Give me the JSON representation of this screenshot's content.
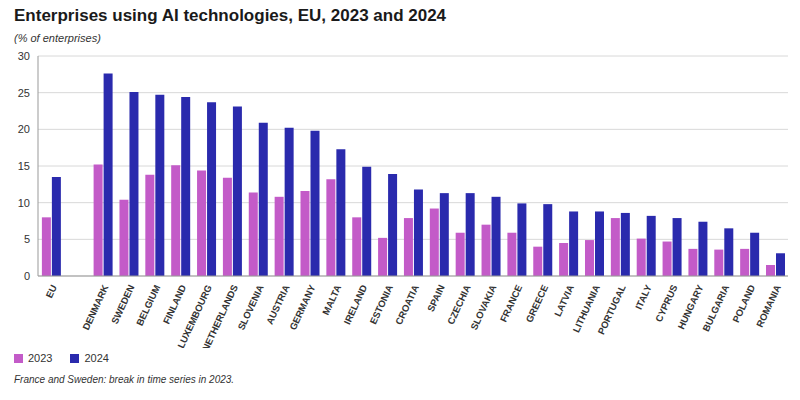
{
  "chart_data": {
    "type": "bar",
    "title": "Enterprises using AI technologies, EU, 2023 and 2024",
    "subtitle": "(% of enterprises)",
    "footnote": "France and Sweden: break in time series in 2023.",
    "categories": [
      "EU",
      null,
      "DENMARK",
      "SWEDEN",
      "BELGIUM",
      "FINLAND",
      "LUXEMBOURG",
      "NETHERLANDS",
      "SLOVENIA",
      "AUSTRIA",
      "GERMANY",
      "MALTA",
      "IRELAND",
      "ESTONIA",
      "CROATIA",
      "SPAIN",
      "CZECHIA",
      "SLOVAKIA",
      "FRANCE",
      "GREECE",
      "LATVIA",
      "LITHUANIA",
      "PORTUGAL",
      "ITALY",
      "CYPRUS",
      "HUNGARY",
      "BULGARIA",
      "POLAND",
      "ROMANIA"
    ],
    "series": [
      {
        "name": "2023",
        "color": "#c35bc8",
        "values": [
          8.0,
          null,
          15.2,
          10.4,
          13.8,
          15.1,
          14.4,
          13.4,
          11.4,
          10.8,
          11.6,
          13.2,
          8.0,
          5.2,
          7.9,
          9.2,
          5.9,
          7.0,
          5.9,
          4.0,
          4.5,
          4.9,
          7.9,
          5.1,
          4.7,
          3.7,
          3.6,
          3.7,
          1.5
        ]
      },
      {
        "name": "2024",
        "color": "#2a2aad",
        "values": [
          13.5,
          null,
          27.6,
          25.1,
          24.7,
          24.4,
          23.7,
          23.1,
          20.9,
          20.2,
          19.8,
          17.3,
          14.9,
          13.9,
          11.8,
          11.3,
          11.3,
          10.8,
          9.9,
          9.8,
          8.8,
          8.8,
          8.6,
          8.2,
          7.9,
          7.4,
          6.5,
          5.9,
          3.1
        ]
      }
    ],
    "ylim": [
      0,
      30
    ],
    "yticks": [
      0,
      5,
      10,
      15,
      20,
      25,
      30
    ],
    "grid": true,
    "legend": "bottom-left"
  }
}
